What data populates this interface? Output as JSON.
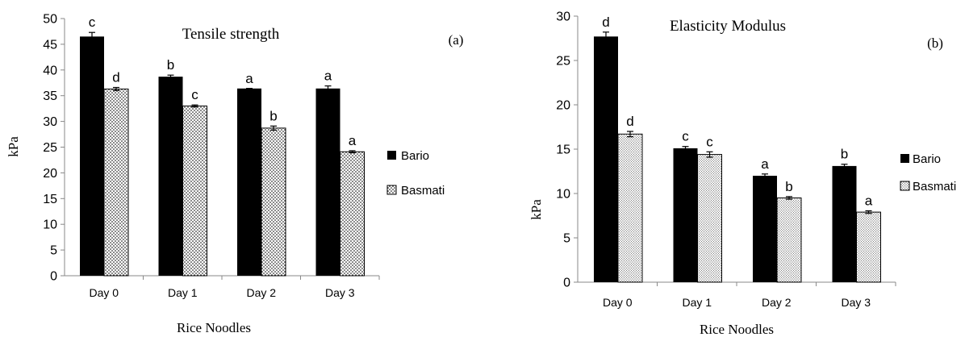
{
  "chart_data": [
    {
      "type": "bar",
      "title": "Tensile strength",
      "panel_label": "(a)",
      "xlabel": "Rice Noodles",
      "ylabel": "kPa",
      "ylim": [
        0,
        50
      ],
      "yticks": [
        0,
        5,
        10,
        15,
        20,
        25,
        30,
        35,
        40,
        45,
        50
      ],
      "grid": false,
      "legend_position": "right",
      "categories": [
        "Day 0",
        "Day 1",
        "Day 2",
        "Day 3"
      ],
      "series": [
        {
          "name": "Bario",
          "fill": "solid",
          "color": "#000000",
          "values": [
            46.5,
            38.7,
            36.4,
            36.4
          ],
          "errors": [
            0.8,
            0.3,
            0.0,
            0.5
          ],
          "labels": [
            "c",
            "b",
            "a",
            "a"
          ]
        },
        {
          "name": "Basmati",
          "fill": "dots",
          "color": "#000000",
          "values": [
            36.3,
            33.0,
            28.7,
            24.1
          ],
          "errors": [
            0.3,
            0.2,
            0.4,
            0.2
          ],
          "labels": [
            "d",
            "c",
            "b",
            "a"
          ]
        }
      ]
    },
    {
      "type": "bar",
      "title": "Elasticity Modulus",
      "panel_label": "(b)",
      "xlabel": "Rice Noodles",
      "ylabel": "kPa",
      "ylim": [
        0,
        30
      ],
      "yticks": [
        0,
        5,
        10,
        15,
        20,
        25,
        30
      ],
      "grid": false,
      "legend_position": "right",
      "categories": [
        "Day 0",
        "Day 1",
        "Day 2",
        "Day 3"
      ],
      "series": [
        {
          "name": "Bario",
          "fill": "solid",
          "color": "#000000",
          "values": [
            27.7,
            15.1,
            12.0,
            13.1
          ],
          "errors": [
            0.5,
            0.2,
            0.2,
            0.2
          ],
          "labels": [
            "d",
            "c",
            "a",
            "b"
          ]
        },
        {
          "name": "Basmati",
          "fill": "fine-dots",
          "color": "#000000",
          "values": [
            16.7,
            14.4,
            9.5,
            7.9
          ],
          "errors": [
            0.3,
            0.3,
            0.15,
            0.15
          ],
          "labels": [
            "d",
            "c",
            "b",
            "a"
          ]
        }
      ]
    }
  ]
}
